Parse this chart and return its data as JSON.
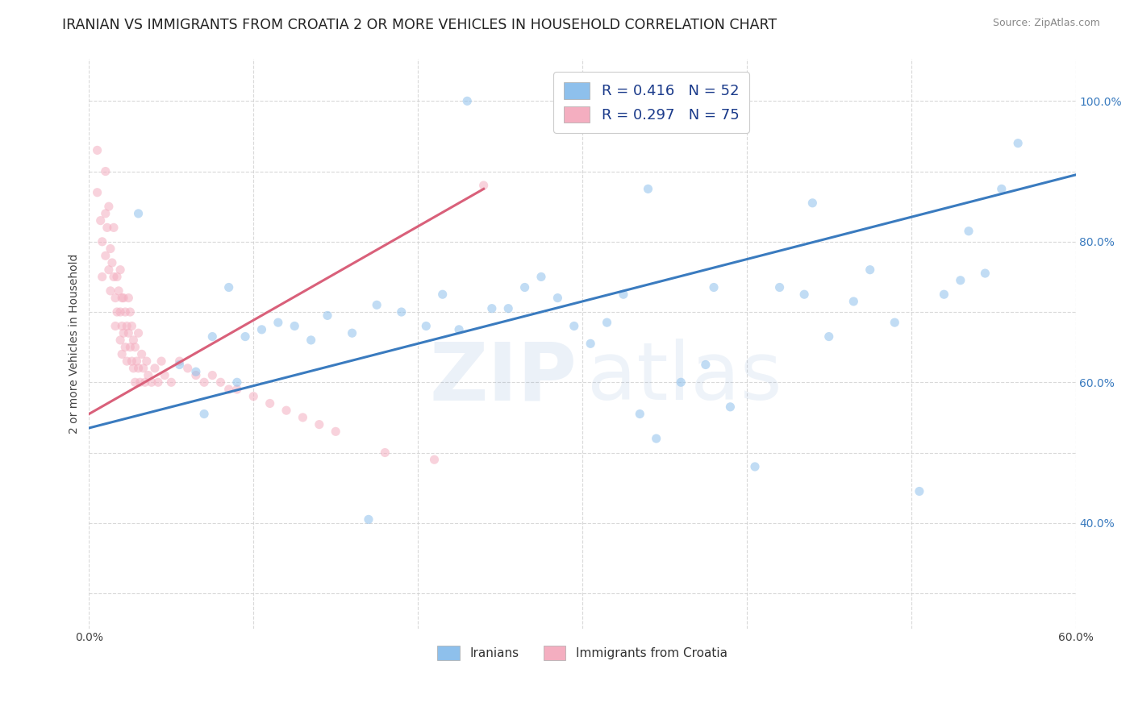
{
  "title": "IRANIAN VS IMMIGRANTS FROM CROATIA 2 OR MORE VEHICLES IN HOUSEHOLD CORRELATION CHART",
  "source": "Source: ZipAtlas.com",
  "ylabel": "2 or more Vehicles in Household",
  "watermark_top": "ZIP",
  "watermark_bot": "atlas",
  "legend_labels_bottom": [
    "Iranians",
    "Immigrants from Croatia"
  ],
  "xlim": [
    0.0,
    0.6
  ],
  "ylim": [
    0.25,
    1.06
  ],
  "xticks": [
    0.0,
    0.1,
    0.2,
    0.3,
    0.4,
    0.5,
    0.6
  ],
  "xticklabels": [
    "0.0%",
    "",
    "",
    "",
    "",
    "",
    "60.0%"
  ],
  "yticks": [
    0.4,
    0.6,
    0.8,
    1.0
  ],
  "yticklabels_right": [
    "40.0%",
    "60.0%",
    "80.0%",
    "100.0%"
  ],
  "blue_scatter_x": [
    0.23,
    0.03,
    0.085,
    0.055,
    0.065,
    0.075,
    0.095,
    0.105,
    0.115,
    0.125,
    0.135,
    0.145,
    0.16,
    0.175,
    0.19,
    0.205,
    0.215,
    0.225,
    0.245,
    0.255,
    0.265,
    0.275,
    0.285,
    0.295,
    0.305,
    0.315,
    0.325,
    0.335,
    0.345,
    0.36,
    0.375,
    0.39,
    0.405,
    0.42,
    0.435,
    0.45,
    0.465,
    0.475,
    0.49,
    0.505,
    0.52,
    0.535,
    0.545,
    0.555,
    0.565,
    0.53,
    0.44,
    0.34,
    0.17,
    0.09,
    0.07,
    0.38
  ],
  "blue_scatter_y": [
    1.0,
    0.84,
    0.735,
    0.625,
    0.615,
    0.665,
    0.665,
    0.675,
    0.685,
    0.68,
    0.66,
    0.695,
    0.67,
    0.71,
    0.7,
    0.68,
    0.725,
    0.675,
    0.705,
    0.705,
    0.735,
    0.75,
    0.72,
    0.68,
    0.655,
    0.685,
    0.725,
    0.555,
    0.52,
    0.6,
    0.625,
    0.565,
    0.48,
    0.735,
    0.725,
    0.665,
    0.715,
    0.76,
    0.685,
    0.445,
    0.725,
    0.815,
    0.755,
    0.875,
    0.94,
    0.745,
    0.855,
    0.875,
    0.405,
    0.6,
    0.555,
    0.735
  ],
  "pink_scatter_x": [
    0.005,
    0.005,
    0.007,
    0.008,
    0.008,
    0.01,
    0.01,
    0.01,
    0.011,
    0.012,
    0.012,
    0.013,
    0.013,
    0.014,
    0.015,
    0.015,
    0.016,
    0.016,
    0.017,
    0.017,
    0.018,
    0.019,
    0.019,
    0.019,
    0.02,
    0.02,
    0.02,
    0.021,
    0.021,
    0.022,
    0.022,
    0.023,
    0.023,
    0.024,
    0.024,
    0.025,
    0.025,
    0.026,
    0.026,
    0.027,
    0.027,
    0.028,
    0.028,
    0.029,
    0.03,
    0.03,
    0.031,
    0.032,
    0.033,
    0.034,
    0.035,
    0.036,
    0.038,
    0.04,
    0.042,
    0.044,
    0.046,
    0.05,
    0.055,
    0.06,
    0.065,
    0.07,
    0.075,
    0.08,
    0.085,
    0.09,
    0.1,
    0.11,
    0.12,
    0.13,
    0.14,
    0.15,
    0.18,
    0.21,
    0.24
  ],
  "pink_scatter_y": [
    0.93,
    0.87,
    0.83,
    0.8,
    0.75,
    0.9,
    0.84,
    0.78,
    0.82,
    0.76,
    0.85,
    0.79,
    0.73,
    0.77,
    0.82,
    0.75,
    0.72,
    0.68,
    0.75,
    0.7,
    0.73,
    0.76,
    0.7,
    0.66,
    0.72,
    0.68,
    0.64,
    0.72,
    0.67,
    0.7,
    0.65,
    0.68,
    0.63,
    0.72,
    0.67,
    0.7,
    0.65,
    0.68,
    0.63,
    0.66,
    0.62,
    0.65,
    0.6,
    0.63,
    0.67,
    0.62,
    0.6,
    0.64,
    0.62,
    0.6,
    0.63,
    0.61,
    0.6,
    0.62,
    0.6,
    0.63,
    0.61,
    0.6,
    0.63,
    0.62,
    0.61,
    0.6,
    0.61,
    0.6,
    0.59,
    0.59,
    0.58,
    0.57,
    0.56,
    0.55,
    0.54,
    0.53,
    0.5,
    0.49,
    0.88
  ],
  "blue_line_x": [
    0.0,
    0.6
  ],
  "blue_line_y": [
    0.535,
    0.895
  ],
  "pink_line_x": [
    0.0,
    0.24
  ],
  "pink_line_y": [
    0.555,
    0.875
  ],
  "blue_color": "#8ec0ec",
  "pink_color": "#f4aec0",
  "blue_line_color": "#3a7bbf",
  "pink_line_color": "#d9607a",
  "scatter_alpha": 0.55,
  "scatter_size": 65,
  "background_color": "#ffffff",
  "grid_color": "#d0d0d0",
  "title_fontsize": 12.5,
  "axis_label_fontsize": 10,
  "tick_fontsize": 10,
  "watermark_alpha": 0.1,
  "watermark_fontsize": 72,
  "watermark_color": "#6090c8",
  "legend_r_blue": "R = 0.416   N = 52",
  "legend_r_pink": "R = 0.297   N = 75"
}
